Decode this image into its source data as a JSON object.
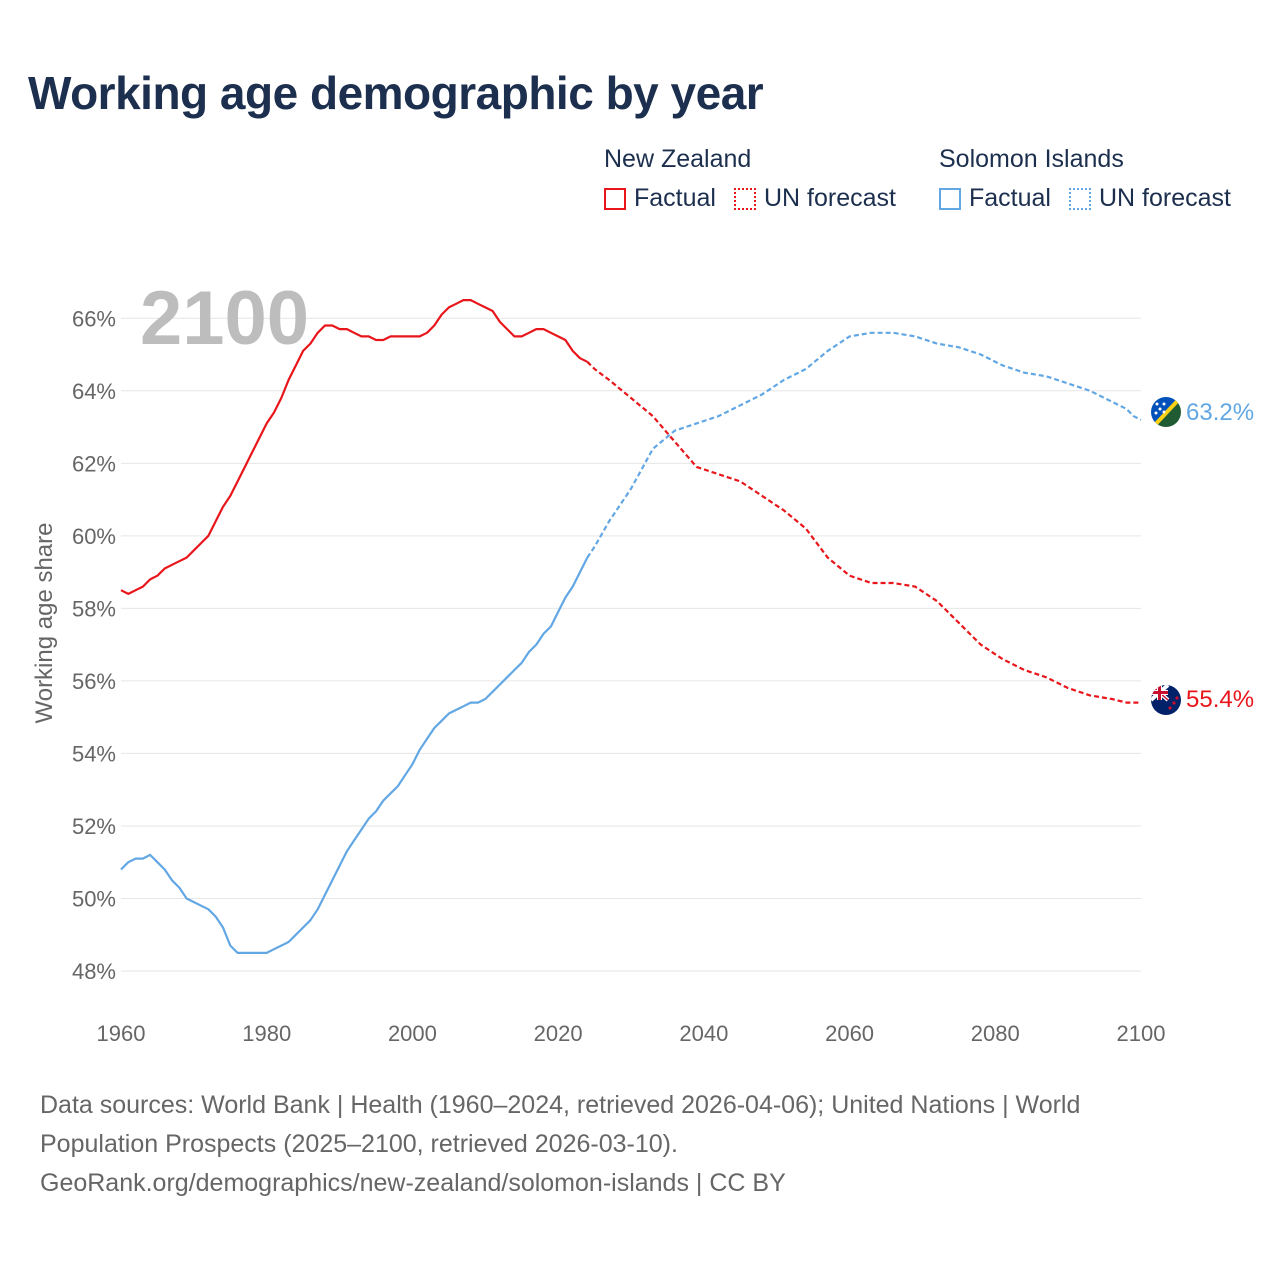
{
  "title": "Working age demographic by year",
  "legend": {
    "groups": [
      {
        "name": "New Zealand",
        "factual": "Factual",
        "forecast": "UN forecast",
        "color": "#e8161b"
      },
      {
        "name": "Solomon Islands",
        "factual": "Factual",
        "forecast": "UN forecast",
        "color": "#62a7e4"
      }
    ]
  },
  "footer": {
    "line1": "Data sources: World Bank | Health (1960–2024, retrieved 2026-04-06); United Nations | World",
    "line2": "Population Prospects (2025–2100, retrieved 2026-03-10).",
    "line3": "GeoRank.org/demographics/new-zealand/solomon-islands | CC BY"
  },
  "chart_data": {
    "type": "line",
    "ylabel": "Working age share",
    "year_label": "2100",
    "xlim": [
      1960,
      2100
    ],
    "ylim": [
      47.2,
      67
    ],
    "xticks": [
      1960,
      1980,
      2000,
      2020,
      2040,
      2060,
      2080,
      2100
    ],
    "yticks": [
      48,
      50,
      52,
      54,
      56,
      58,
      60,
      62,
      64,
      66
    ],
    "ytick_suffix": "%",
    "forecast_start": 2024,
    "series": [
      {
        "name": "New Zealand",
        "color": "#e8161b",
        "end_label": "55.4%",
        "points": [
          [
            1960,
            58.5
          ],
          [
            1961,
            58.4
          ],
          [
            1962,
            58.5
          ],
          [
            1963,
            58.6
          ],
          [
            1964,
            58.8
          ],
          [
            1965,
            58.9
          ],
          [
            1966,
            59.1
          ],
          [
            1967,
            59.2
          ],
          [
            1968,
            59.3
          ],
          [
            1969,
            59.4
          ],
          [
            1970,
            59.6
          ],
          [
            1971,
            59.8
          ],
          [
            1972,
            60.0
          ],
          [
            1973,
            60.4
          ],
          [
            1974,
            60.8
          ],
          [
            1975,
            61.1
          ],
          [
            1976,
            61.5
          ],
          [
            1977,
            61.9
          ],
          [
            1978,
            62.3
          ],
          [
            1979,
            62.7
          ],
          [
            1980,
            63.1
          ],
          [
            1981,
            63.4
          ],
          [
            1982,
            63.8
          ],
          [
            1983,
            64.3
          ],
          [
            1984,
            64.7
          ],
          [
            1985,
            65.1
          ],
          [
            1986,
            65.3
          ],
          [
            1987,
            65.6
          ],
          [
            1988,
            65.8
          ],
          [
            1989,
            65.8
          ],
          [
            1990,
            65.7
          ],
          [
            1991,
            65.7
          ],
          [
            1992,
            65.6
          ],
          [
            1993,
            65.5
          ],
          [
            1994,
            65.5
          ],
          [
            1995,
            65.4
          ],
          [
            1996,
            65.4
          ],
          [
            1997,
            65.5
          ],
          [
            1998,
            65.5
          ],
          [
            1999,
            65.5
          ],
          [
            2000,
            65.5
          ],
          [
            2001,
            65.5
          ],
          [
            2002,
            65.6
          ],
          [
            2003,
            65.8
          ],
          [
            2004,
            66.1
          ],
          [
            2005,
            66.3
          ],
          [
            2006,
            66.4
          ],
          [
            2007,
            66.5
          ],
          [
            2008,
            66.5
          ],
          [
            2009,
            66.4
          ],
          [
            2010,
            66.3
          ],
          [
            2011,
            66.2
          ],
          [
            2012,
            65.9
          ],
          [
            2013,
            65.7
          ],
          [
            2014,
            65.5
          ],
          [
            2015,
            65.5
          ],
          [
            2016,
            65.6
          ],
          [
            2017,
            65.7
          ],
          [
            2018,
            65.7
          ],
          [
            2019,
            65.6
          ],
          [
            2020,
            65.5
          ],
          [
            2021,
            65.4
          ],
          [
            2022,
            65.1
          ],
          [
            2023,
            64.9
          ],
          [
            2024,
            64.8
          ],
          [
            2025,
            64.6
          ],
          [
            2027,
            64.3
          ],
          [
            2030,
            63.8
          ],
          [
            2033,
            63.3
          ],
          [
            2036,
            62.6
          ],
          [
            2039,
            61.9
          ],
          [
            2042,
            61.7
          ],
          [
            2045,
            61.5
          ],
          [
            2048,
            61.1
          ],
          [
            2051,
            60.7
          ],
          [
            2054,
            60.2
          ],
          [
            2057,
            59.4
          ],
          [
            2060,
            58.9
          ],
          [
            2063,
            58.7
          ],
          [
            2066,
            58.7
          ],
          [
            2069,
            58.6
          ],
          [
            2072,
            58.2
          ],
          [
            2075,
            57.6
          ],
          [
            2078,
            57.0
          ],
          [
            2081,
            56.6
          ],
          [
            2084,
            56.3
          ],
          [
            2087,
            56.1
          ],
          [
            2090,
            55.8
          ],
          [
            2093,
            55.6
          ],
          [
            2096,
            55.5
          ],
          [
            2098,
            55.4
          ],
          [
            2100,
            55.4
          ]
        ]
      },
      {
        "name": "Solomon Islands",
        "color": "#62a7e4",
        "end_label": "63.2%",
        "points": [
          [
            1960,
            50.8
          ],
          [
            1961,
            51.0
          ],
          [
            1962,
            51.1
          ],
          [
            1963,
            51.1
          ],
          [
            1964,
            51.2
          ],
          [
            1965,
            51.0
          ],
          [
            1966,
            50.8
          ],
          [
            1967,
            50.5
          ],
          [
            1968,
            50.3
          ],
          [
            1969,
            50.0
          ],
          [
            1970,
            49.9
          ],
          [
            1971,
            49.8
          ],
          [
            1972,
            49.7
          ],
          [
            1973,
            49.5
          ],
          [
            1974,
            49.2
          ],
          [
            1975,
            48.7
          ],
          [
            1976,
            48.5
          ],
          [
            1977,
            48.5
          ],
          [
            1978,
            48.5
          ],
          [
            1979,
            48.5
          ],
          [
            1980,
            48.5
          ],
          [
            1981,
            48.6
          ],
          [
            1982,
            48.7
          ],
          [
            1983,
            48.8
          ],
          [
            1984,
            49.0
          ],
          [
            1985,
            49.2
          ],
          [
            1986,
            49.4
          ],
          [
            1987,
            49.7
          ],
          [
            1988,
            50.1
          ],
          [
            1989,
            50.5
          ],
          [
            1990,
            50.9
          ],
          [
            1991,
            51.3
          ],
          [
            1992,
            51.6
          ],
          [
            1993,
            51.9
          ],
          [
            1994,
            52.2
          ],
          [
            1995,
            52.4
          ],
          [
            1996,
            52.7
          ],
          [
            1997,
            52.9
          ],
          [
            1998,
            53.1
          ],
          [
            1999,
            53.4
          ],
          [
            2000,
            53.7
          ],
          [
            2001,
            54.1
          ],
          [
            2002,
            54.4
          ],
          [
            2003,
            54.7
          ],
          [
            2004,
            54.9
          ],
          [
            2005,
            55.1
          ],
          [
            2006,
            55.2
          ],
          [
            2007,
            55.3
          ],
          [
            2008,
            55.4
          ],
          [
            2009,
            55.4
          ],
          [
            2010,
            55.5
          ],
          [
            2011,
            55.7
          ],
          [
            2012,
            55.9
          ],
          [
            2013,
            56.1
          ],
          [
            2014,
            56.3
          ],
          [
            2015,
            56.5
          ],
          [
            2016,
            56.8
          ],
          [
            2017,
            57.0
          ],
          [
            2018,
            57.3
          ],
          [
            2019,
            57.5
          ],
          [
            2020,
            57.9
          ],
          [
            2021,
            58.3
          ],
          [
            2022,
            58.6
          ],
          [
            2023,
            59.0
          ],
          [
            2024,
            59.4
          ],
          [
            2025,
            59.7
          ],
          [
            2027,
            60.4
          ],
          [
            2030,
            61.3
          ],
          [
            2033,
            62.4
          ],
          [
            2036,
            62.9
          ],
          [
            2039,
            63.1
          ],
          [
            2042,
            63.3
          ],
          [
            2045,
            63.6
          ],
          [
            2048,
            63.9
          ],
          [
            2051,
            64.3
          ],
          [
            2054,
            64.6
          ],
          [
            2057,
            65.1
          ],
          [
            2060,
            65.5
          ],
          [
            2063,
            65.6
          ],
          [
            2066,
            65.6
          ],
          [
            2069,
            65.5
          ],
          [
            2072,
            65.3
          ],
          [
            2075,
            65.2
          ],
          [
            2078,
            65.0
          ],
          [
            2081,
            64.7
          ],
          [
            2084,
            64.5
          ],
          [
            2087,
            64.4
          ],
          [
            2090,
            64.2
          ],
          [
            2093,
            64.0
          ],
          [
            2096,
            63.7
          ],
          [
            2098,
            63.5
          ],
          [
            2099,
            63.3
          ],
          [
            2100,
            63.2
          ]
        ]
      }
    ]
  }
}
